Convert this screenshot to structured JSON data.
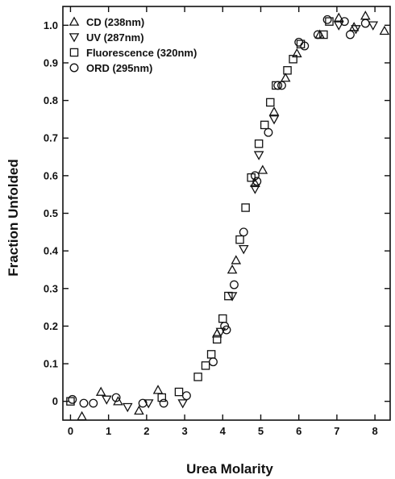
{
  "chart_data": {
    "type": "scatter",
    "title": "",
    "xlabel": "Urea Molarity",
    "ylabel": "Fraction Unfolded",
    "xlim": [
      -0.2,
      8.4
    ],
    "ylim": [
      -0.05,
      1.05
    ],
    "x_ticks": [
      "0",
      "1",
      "2",
      "3",
      "4",
      "5",
      "6",
      "7",
      "8"
    ],
    "y_ticks": [
      "0",
      "0.1",
      "0.2",
      "0.3",
      "0.4",
      "0.5",
      "0.6",
      "0.7",
      "0.8",
      "0.9",
      "1.0"
    ],
    "grid": false,
    "legend_position": "top-left",
    "series": [
      {
        "name": "CD (238nm)",
        "marker": "triangle-up",
        "points": [
          [
            0.3,
            -0.04
          ],
          [
            0.8,
            0.025
          ],
          [
            1.25,
            0.0
          ],
          [
            1.8,
            -0.025
          ],
          [
            2.3,
            0.03
          ],
          [
            3.85,
            0.18
          ],
          [
            4.25,
            0.35
          ],
          [
            4.35,
            0.375
          ],
          [
            4.85,
            0.58
          ],
          [
            5.05,
            0.615
          ],
          [
            5.35,
            0.77
          ],
          [
            5.65,
            0.86
          ],
          [
            5.95,
            0.925
          ],
          [
            6.55,
            0.975
          ],
          [
            7.05,
            1.02
          ],
          [
            7.45,
            0.995
          ],
          [
            7.75,
            1.025
          ],
          [
            8.25,
            0.985
          ]
        ]
      },
      {
        "name": "UV (287nm)",
        "marker": "triangle-down",
        "points": [
          [
            0.95,
            0.005
          ],
          [
            1.5,
            -0.015
          ],
          [
            2.05,
            -0.005
          ],
          [
            2.95,
            -0.005
          ],
          [
            3.95,
            0.185
          ],
          [
            4.25,
            0.28
          ],
          [
            4.55,
            0.405
          ],
          [
            4.85,
            0.565
          ],
          [
            4.95,
            0.655
          ],
          [
            5.35,
            0.75
          ],
          [
            7.05,
            1.0
          ],
          [
            7.5,
            0.99
          ],
          [
            7.95,
            1.0
          ]
        ]
      },
      {
        "name": "Fluorescence (320nm)",
        "marker": "square",
        "points": [
          [
            0.0,
            0.0
          ],
          [
            2.4,
            0.01
          ],
          [
            2.85,
            0.025
          ],
          [
            3.35,
            0.065
          ],
          [
            3.55,
            0.095
          ],
          [
            3.7,
            0.125
          ],
          [
            3.85,
            0.165
          ],
          [
            4.0,
            0.22
          ],
          [
            4.15,
            0.28
          ],
          [
            4.45,
            0.43
          ],
          [
            4.6,
            0.515
          ],
          [
            4.75,
            0.595
          ],
          [
            4.95,
            0.685
          ],
          [
            5.1,
            0.735
          ],
          [
            5.25,
            0.795
          ],
          [
            5.4,
            0.84
          ],
          [
            5.7,
            0.88
          ],
          [
            5.85,
            0.91
          ],
          [
            6.05,
            0.95
          ],
          [
            6.65,
            0.975
          ],
          [
            6.8,
            1.01
          ]
        ]
      },
      {
        "name": "ORD (295nm)",
        "marker": "circle",
        "points": [
          [
            0.05,
            0.005
          ],
          [
            0.35,
            -0.005
          ],
          [
            0.6,
            -0.005
          ],
          [
            1.2,
            0.01
          ],
          [
            1.9,
            -0.005
          ],
          [
            2.45,
            -0.005
          ],
          [
            3.05,
            0.015
          ],
          [
            3.75,
            0.105
          ],
          [
            4.05,
            0.2
          ],
          [
            4.1,
            0.19
          ],
          [
            4.3,
            0.31
          ],
          [
            4.55,
            0.45
          ],
          [
            4.85,
            0.6
          ],
          [
            4.9,
            0.585
          ],
          [
            5.2,
            0.715
          ],
          [
            5.45,
            0.84
          ],
          [
            5.55,
            0.84
          ],
          [
            6.0,
            0.955
          ],
          [
            6.15,
            0.945
          ],
          [
            6.5,
            0.975
          ],
          [
            6.75,
            1.015
          ],
          [
            7.2,
            1.01
          ],
          [
            7.35,
            0.975
          ],
          [
            7.75,
            1.005
          ]
        ]
      }
    ]
  }
}
